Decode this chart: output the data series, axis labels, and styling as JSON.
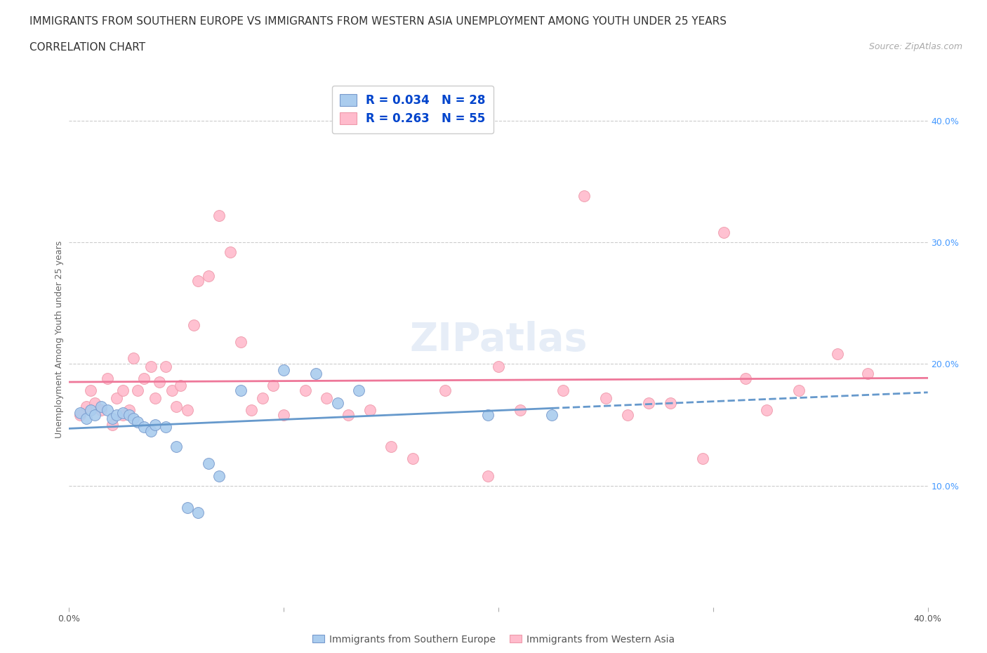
{
  "title_line1": "IMMIGRANTS FROM SOUTHERN EUROPE VS IMMIGRANTS FROM WESTERN ASIA UNEMPLOYMENT AMONG YOUTH UNDER 25 YEARS",
  "title_line2": "CORRELATION CHART",
  "source": "Source: ZipAtlas.com",
  "ylabel": "Unemployment Among Youth under 25 years",
  "xlim": [
    0.0,
    0.4
  ],
  "ylim": [
    0.0,
    0.44
  ],
  "xticks": [
    0.0,
    0.1,
    0.2,
    0.3,
    0.4
  ],
  "yticks": [
    0.1,
    0.2,
    0.3,
    0.4
  ],
  "xtick_labels": [
    "0.0%",
    "",
    "",
    "",
    "40.0%"
  ],
  "ytick_labels_right": [
    "10.0%",
    "20.0%",
    "30.0%",
    "40.0%"
  ],
  "background_color": "#ffffff",
  "grid_color": "#cccccc",
  "watermark": "ZIPatlas",
  "series_blue_label": "Immigrants from Southern Europe",
  "series_blue_R": "0.034",
  "series_blue_N": "28",
  "series_blue_color": "#aaccee",
  "series_blue_edge": "#7799cc",
  "series_blue_line_color": "#6699cc",
  "series_pink_label": "Immigrants from Western Asia",
  "series_pink_R": "0.263",
  "series_pink_N": "55",
  "series_pink_color": "#ffbbcc",
  "series_pink_edge": "#ee99aa",
  "series_pink_line_color": "#ee7799",
  "blue_x": [
    0.005,
    0.008,
    0.01,
    0.012,
    0.015,
    0.018,
    0.02,
    0.022,
    0.025,
    0.028,
    0.03,
    0.032,
    0.035,
    0.038,
    0.04,
    0.045,
    0.05,
    0.055,
    0.06,
    0.065,
    0.07,
    0.08,
    0.1,
    0.115,
    0.125,
    0.135,
    0.195,
    0.225
  ],
  "blue_y": [
    0.16,
    0.155,
    0.162,
    0.158,
    0.165,
    0.162,
    0.155,
    0.158,
    0.16,
    0.158,
    0.155,
    0.152,
    0.148,
    0.145,
    0.15,
    0.148,
    0.132,
    0.082,
    0.078,
    0.118,
    0.108,
    0.178,
    0.195,
    0.192,
    0.168,
    0.178,
    0.158,
    0.158
  ],
  "pink_x": [
    0.005,
    0.008,
    0.01,
    0.012,
    0.015,
    0.018,
    0.02,
    0.022,
    0.025,
    0.025,
    0.028,
    0.03,
    0.032,
    0.035,
    0.038,
    0.04,
    0.042,
    0.045,
    0.048,
    0.05,
    0.052,
    0.055,
    0.058,
    0.06,
    0.065,
    0.07,
    0.075,
    0.08,
    0.085,
    0.09,
    0.095,
    0.1,
    0.11,
    0.12,
    0.13,
    0.14,
    0.15,
    0.16,
    0.175,
    0.195,
    0.2,
    0.21,
    0.23,
    0.24,
    0.25,
    0.26,
    0.27,
    0.28,
    0.295,
    0.305,
    0.315,
    0.325,
    0.34,
    0.358,
    0.372
  ],
  "pink_y": [
    0.158,
    0.165,
    0.178,
    0.168,
    0.162,
    0.188,
    0.15,
    0.172,
    0.158,
    0.178,
    0.162,
    0.205,
    0.178,
    0.188,
    0.198,
    0.172,
    0.185,
    0.198,
    0.178,
    0.165,
    0.182,
    0.162,
    0.232,
    0.268,
    0.272,
    0.322,
    0.292,
    0.218,
    0.162,
    0.172,
    0.182,
    0.158,
    0.178,
    0.172,
    0.158,
    0.162,
    0.132,
    0.122,
    0.178,
    0.108,
    0.198,
    0.162,
    0.178,
    0.338,
    0.172,
    0.158,
    0.168,
    0.168,
    0.122,
    0.308,
    0.188,
    0.162,
    0.178,
    0.208,
    0.192
  ],
  "blue_trend_x_solid_end": 0.225,
  "pink_trend_x_start": 0.0,
  "pink_trend_x_end": 0.4,
  "legend_color": "#0044cc",
  "title_fontsize": 11,
  "subtitle_fontsize": 11,
  "source_fontsize": 9,
  "axis_label_fontsize": 9,
  "tick_fontsize": 9,
  "legend_fontsize": 12,
  "watermark_fontsize": 40
}
